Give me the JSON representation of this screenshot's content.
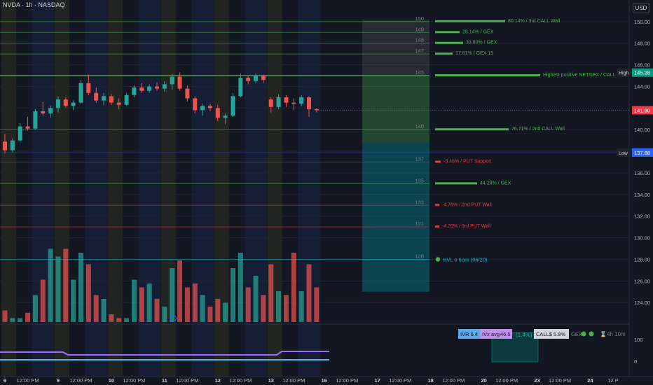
{
  "header": {
    "title": "NVDA · 1h · NASDAQ",
    "currency": "USD"
  },
  "colors": {
    "background": "#131722",
    "up": "#26a69a",
    "down": "#ef5350",
    "call": "#4caf50",
    "put": "#e53945",
    "hvl": "#00bcd4"
  },
  "chart_data": {
    "type": "candlestick",
    "title": "NVDA · 1h · NASDAQ",
    "ylim": [
      122.2,
      152
    ],
    "grid": true,
    "y_ticks": [
      "150.00",
      "148.00",
      "146.00",
      "144.00",
      "142.00",
      "140.00",
      "138.00",
      "136.00",
      "134.00",
      "132.00",
      "130.00",
      "128.00",
      "126.00",
      "124.00"
    ],
    "x_ticks": [
      {
        "t": 0,
        "label": "6"
      },
      {
        "t": 3,
        "label": "12:00 PM"
      },
      {
        "t": 7,
        "label": "9"
      },
      {
        "t": 10,
        "label": "12:00 PM"
      },
      {
        "t": 14,
        "label": "10"
      },
      {
        "t": 17,
        "label": "12:00 PM"
      },
      {
        "t": 21,
        "label": "11"
      },
      {
        "t": 24,
        "label": "12:00 PM"
      },
      {
        "t": 28,
        "label": "12"
      },
      {
        "t": 31,
        "label": "12:00 PM"
      },
      {
        "t": 35,
        "label": "13"
      },
      {
        "t": 38,
        "label": "12:00 PM"
      },
      {
        "t": 42,
        "label": "16"
      },
      {
        "t": 45,
        "label": "12:00 PM"
      },
      {
        "t": 49,
        "label": "17"
      },
      {
        "t": 52,
        "label": "12:00 PM"
      },
      {
        "t": 56,
        "label": "18"
      },
      {
        "t": 59,
        "label": "12:00 PM"
      },
      {
        "t": 63,
        "label": "20"
      },
      {
        "t": 66,
        "label": "12:00 PM"
      },
      {
        "t": 70,
        "label": "23"
      },
      {
        "t": 73,
        "label": "12:00 PM"
      },
      {
        "t": 77,
        "label": "24"
      },
      {
        "t": 80,
        "label": "12 P"
      }
    ],
    "price_tags": [
      {
        "label": "High",
        "value": "145.28",
        "y": 145.28,
        "color": "#089981"
      },
      {
        "label": "",
        "value": "141.80",
        "y": 141.8,
        "color": "#f23645"
      },
      {
        "label": "Low",
        "value": "137.88",
        "y": 137.88,
        "color": "#2962ff"
      }
    ],
    "levels": [
      {
        "strike": "150",
        "y": 150,
        "color": "#4caf50",
        "strength": 1.0,
        "label": "80.14% / 3rd CALL Wall"
      },
      {
        "strike": "149",
        "y": 149,
        "color": "#4caf50",
        "strength": 0.35,
        "label": "28.14% / GEX"
      },
      {
        "strike": "148",
        "y": 148,
        "color": "#4caf50",
        "strength": 0.4,
        "label": "33.80% / GEX"
      },
      {
        "strike": "147",
        "y": 147,
        "color": "#4caf50",
        "strength": 0.25,
        "label": "17.81% / GEX 15"
      },
      {
        "strike": "145",
        "y": 145,
        "color": "#4caf50",
        "strength": 1.5,
        "label": "Highest positive NETGEX / CALL Resistance / Gam"
      },
      {
        "strike": "140",
        "y": 140,
        "color": "#4caf50",
        "strength": 1.05,
        "label": "76.71% / 2nd CALL Wall"
      },
      {
        "strike": "137",
        "y": 137,
        "color": "#e53945",
        "strength": 0.08,
        "label": "-5.46% / PUT Support"
      },
      {
        "strike": "135",
        "y": 135,
        "color": "#4caf50",
        "strength": 0.6,
        "label": "44.29% / GEX"
      },
      {
        "strike": "133",
        "y": 133,
        "color": "#e53945",
        "strength": 0.06,
        "label": "-4.76% / 2nd PUT Wall"
      },
      {
        "strike": "131",
        "y": 131,
        "color": "#e53945",
        "strength": 0.06,
        "label": "-4.20% / 3rd PUT Wall"
      },
      {
        "strike": "128",
        "y": 128,
        "color": "#00bcd4",
        "strength": 0,
        "label": "HVL o 6ore (06/20)"
      }
    ],
    "candles": [
      [
        138.9,
        139.6,
        137.8,
        138.1
      ],
      [
        138.1,
        139.2,
        137.9,
        139.0
      ],
      [
        139.0,
        140.6,
        138.9,
        140.3
      ],
      [
        140.3,
        141.2,
        139.9,
        140.1
      ],
      [
        140.1,
        141.9,
        140.0,
        141.7
      ],
      [
        141.7,
        142.6,
        141.3,
        141.5
      ],
      [
        141.5,
        142.2,
        141.1,
        142.0
      ],
      [
        142.0,
        143.1,
        141.6,
        142.8
      ],
      [
        142.8,
        143.0,
        142.0,
        142.2
      ],
      [
        142.2,
        142.7,
        141.8,
        142.5
      ],
      [
        142.5,
        144.6,
        142.4,
        144.3
      ],
      [
        144.3,
        145.1,
        143.2,
        143.4
      ],
      [
        143.4,
        143.9,
        142.5,
        142.7
      ],
      [
        142.7,
        143.4,
        142.3,
        143.1
      ],
      [
        143.1,
        143.3,
        142.3,
        142.5
      ],
      [
        142.5,
        142.9,
        141.9,
        142.3
      ],
      [
        142.3,
        143.4,
        142.2,
        143.2
      ],
      [
        143.2,
        144.1,
        143.0,
        143.9
      ],
      [
        143.9,
        144.3,
        143.4,
        143.6
      ],
      [
        143.6,
        144.2,
        143.4,
        144.0
      ],
      [
        144.0,
        144.4,
        143.6,
        143.8
      ],
      [
        143.8,
        144.5,
        143.5,
        144.2
      ],
      [
        144.2,
        145.2,
        143.7,
        144.9
      ],
      [
        144.9,
        145.3,
        143.6,
        143.8
      ],
      [
        143.8,
        144.1,
        142.6,
        142.9
      ],
      [
        142.9,
        143.1,
        141.5,
        141.8
      ],
      [
        141.8,
        142.4,
        141.3,
        142.2
      ],
      [
        142.2,
        142.4,
        141.7,
        142.0
      ],
      [
        142.0,
        142.3,
        140.8,
        141.1
      ],
      [
        141.1,
        141.5,
        140.5,
        141.3
      ],
      [
        141.3,
        143.4,
        141.2,
        143.1
      ],
      [
        143.1,
        145.2,
        143.0,
        144.8
      ],
      [
        144.8,
        145.0,
        144.2,
        144.5
      ],
      [
        144.5,
        145.2,
        144.3,
        145.0
      ],
      [
        145.0,
        145.1,
        144.3,
        144.6
      ],
      [
        142.8,
        143.0,
        141.6,
        142.1
      ],
      [
        142.1,
        143.3,
        141.9,
        143.0
      ],
      [
        143.0,
        143.2,
        142.1,
        142.5
      ],
      [
        142.5,
        142.9,
        141.8,
        142.4
      ],
      [
        142.4,
        143.2,
        142.2,
        143.0
      ],
      [
        143.0,
        143.1,
        141.2,
        141.9
      ],
      [
        141.9,
        142.0,
        141.6,
        141.8
      ]
    ],
    "volumes": [
      0.15,
      0.05,
      0.05,
      0.12,
      0.35,
      0.55,
      0.95,
      0.85,
      0.95,
      0.55,
      0.9,
      0.75,
      0.35,
      0.3,
      0.1,
      0.05,
      0.05,
      0.55,
      0.45,
      0.5,
      0.3,
      0.2,
      0.7,
      0.8,
      0.45,
      0.5,
      0.35,
      0.2,
      0.3,
      0.25,
      0.7,
      0.9,
      0.45,
      0.6,
      0.35,
      0.75,
      0.4,
      0.35,
      0.9,
      0.4,
      0.75,
      0.45
    ],
    "stats": {
      "ivr": "IVR 6.4",
      "ivx_label": "IVx avg",
      "ivx_value": "46.5",
      "ivx_change": "(1.4%)",
      "calls": "CALL$ 5.8%",
      "gex": "GEX",
      "time_left": "4h 10m"
    },
    "osc_ticks": [
      "100",
      "0"
    ]
  }
}
